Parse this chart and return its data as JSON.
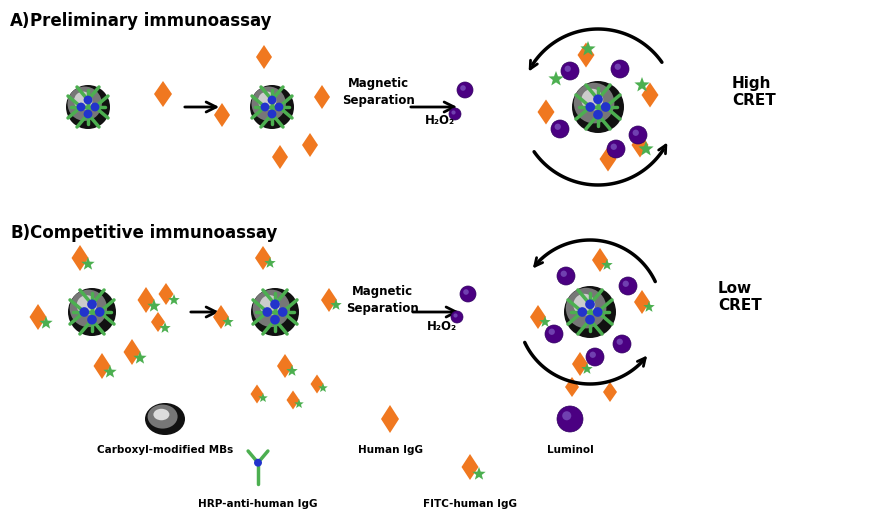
{
  "label_A": "A)",
  "label_B": "B)",
  "text_A": "Preliminary immunoassay",
  "text_B": "Competitive immunoassay",
  "mag_sep": "Magnetic\nSeparation",
  "h2o2": "H₂O₂",
  "high_cret": "High\nCRET",
  "low_cret": "Low\nCRET",
  "legend_mb": "Carboxyl-modified MBs",
  "legend_igg": "Human IgG",
  "legend_luminol": "Luminol",
  "legend_hrp": "HRP-anti-human IgG",
  "legend_fitc": "FITC-human IgG",
  "orange": "#F07820",
  "green": "#4CAF50",
  "blue": "#2233CC",
  "purple": "#4B0082",
  "white": "#FFFFFF",
  "black": "#000000",
  "bg": "#FFFFFF"
}
